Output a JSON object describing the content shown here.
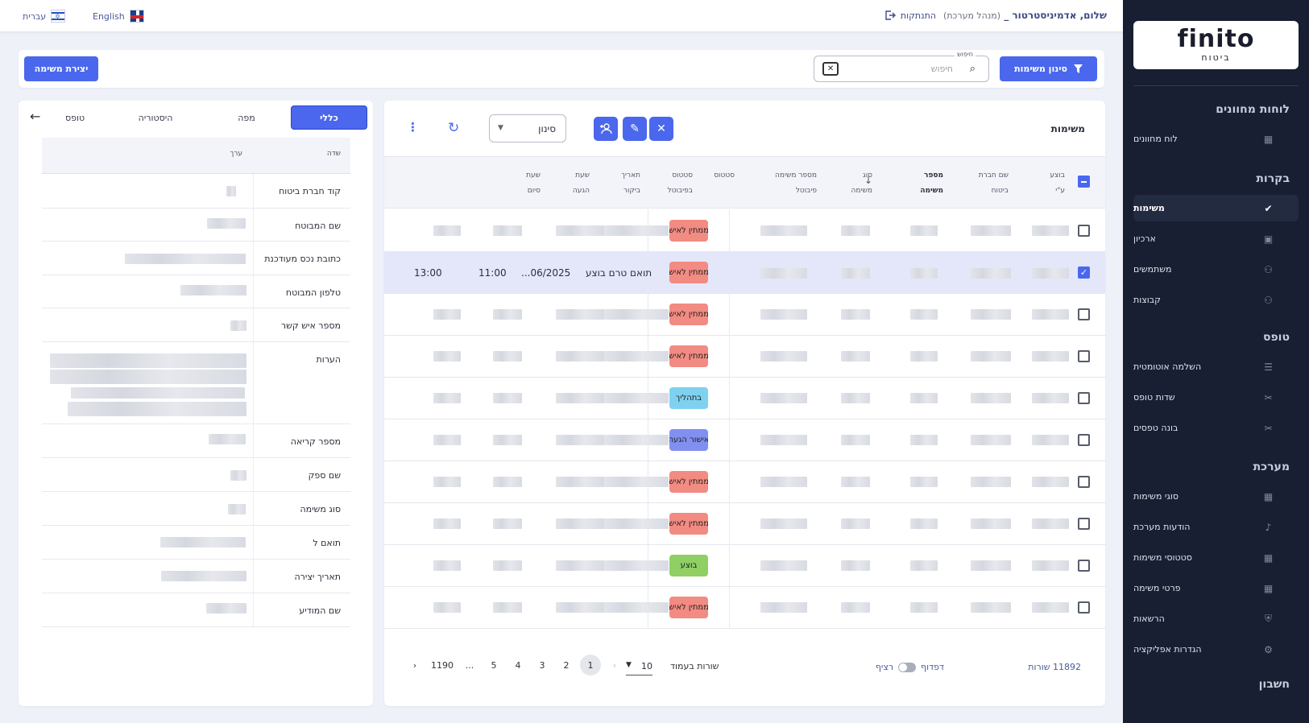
{
  "sidebar": {
    "logo": {
      "text": "finito",
      "sub": "ביטוח"
    },
    "sections": [
      {
        "title": "לוחות מחוונים",
        "items": [
          {
            "label": "לוח מחוונים",
            "icon": "grid-icon"
          }
        ]
      },
      {
        "title": "בקרות",
        "items": [
          {
            "label": "משימות",
            "icon": "check-circle-icon",
            "active": true
          },
          {
            "label": "ארכיון",
            "icon": "archive-icon"
          },
          {
            "label": "משתמשים",
            "icon": "users-icon"
          },
          {
            "label": "קבוצות",
            "icon": "groups-icon"
          }
        ]
      },
      {
        "title": "טופס",
        "items": [
          {
            "label": "השלמה אוטומטית",
            "icon": "list-icon"
          },
          {
            "label": "שדות טופס",
            "icon": "tools-icon"
          },
          {
            "label": "בונה טפסים",
            "icon": "tools-icon"
          }
        ]
      },
      {
        "title": "מערכת",
        "items": [
          {
            "label": "סוגי משימות",
            "icon": "grid-icon"
          },
          {
            "label": "הודעות מערכת",
            "icon": "bell-icon"
          },
          {
            "label": "סטטוסי משימות",
            "icon": "grid-icon"
          },
          {
            "label": "פרטי משימה",
            "icon": "grid-icon"
          },
          {
            "label": "הרשאות",
            "icon": "shield-icon"
          },
          {
            "label": "הגדרות אפליקציה",
            "icon": "gear-icon"
          }
        ]
      },
      {
        "title": "חשבון",
        "items": []
      }
    ]
  },
  "topbar": {
    "greeting": "שלום, אדמיניסטרטור",
    "role": "(מנהל מערכת)",
    "logout": "התנתקות",
    "lang_en": "English",
    "lang_he": "עברית"
  },
  "toolbar": {
    "filter_button": "סינון משימות",
    "search_label": "חיפוש",
    "search_placeholder": "חיפוש",
    "create_button": "יצירת משימה"
  },
  "table": {
    "title": "משימות",
    "filter_select": "סינון",
    "columns": [
      "בוצע\nע\"י",
      "שם חברת\nביטוח",
      "מספר\nמשימה",
      "סוג\nמשימה",
      "מספר משימה\nפיבוטל",
      "סטטוס",
      "סטטוס\nבפיבוטל",
      "תאריך\nביקור",
      "שעת\nהגעה",
      "שעת\nסיום"
    ],
    "rows": [
      {
        "status": "ממתין לאיש",
        "color": "#f28b82",
        "selected": false
      },
      {
        "status": "ממתין לאיש",
        "color": "#f28b82",
        "selected": true,
        "pivotal_status": "תואם טרם בוצע",
        "visit_date": "06/2025...",
        "arrival": "11:00",
        "end": "13:00"
      },
      {
        "status": "ממתין לאיש",
        "color": "#f28b82",
        "selected": false
      },
      {
        "status": "ממתין לאיש",
        "color": "#f28b82",
        "selected": false
      },
      {
        "status": "בתהליך",
        "color": "#7fd1f0",
        "selected": false
      },
      {
        "status": "אישור הגעה",
        "color": "#8190f0",
        "selected": false
      },
      {
        "status": "ממתין לאיש",
        "color": "#f28b82",
        "selected": false
      },
      {
        "status": "ממתין לאיש",
        "color": "#f28b82",
        "selected": false
      },
      {
        "status": "בוצע",
        "color": "#8fcf64",
        "selected": false
      },
      {
        "status": "ממתין לאיש",
        "color": "#f28b82",
        "selected": false
      }
    ],
    "footer": {
      "total": "11892 שורות",
      "paging": "דפדוף",
      "continuous": "רציף",
      "rows_per_page_label": "שורות בעמוד",
      "rows_per_page": "10",
      "pages": [
        "1",
        "2",
        "3",
        "4",
        "5",
        "...",
        "1190"
      ]
    }
  },
  "details": {
    "tabs": [
      "כללי",
      "מפה",
      "היסטוריה",
      "טופס"
    ],
    "head_field": "שדה",
    "head_value": "ערך",
    "fields": [
      "קוד חברת ביטוח",
      "שם המבוטח",
      "כתובת נכס מעודכנת",
      "טלפון המבוטח",
      "מספר איש קשר",
      "הערות",
      "מספר קריאה",
      "שם ספק",
      "סוג משימה",
      "תואם ל",
      "תאריך יצירה",
      "שם המודיע"
    ]
  }
}
